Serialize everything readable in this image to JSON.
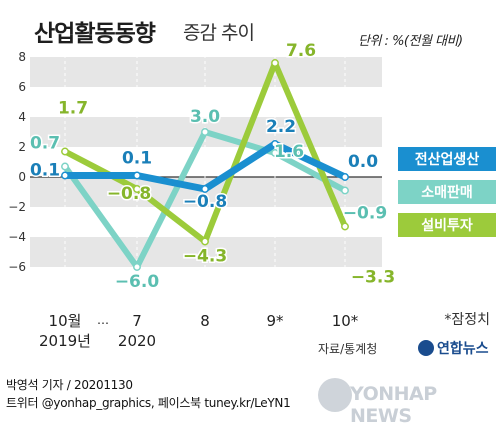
{
  "title": "산업활동동향",
  "subtitle": "증감 추이",
  "unit": "단위 : %(전월 대비)",
  "source": "자료/통계청",
  "footnote": "*잠정치",
  "byline": "박영석 기자 / 20201130",
  "social": "트위터 @yonhap_graphics, 페이스북 tuney.kr/LeYN1",
  "logo_badge": "연합뉴스",
  "watermark": "YONHAP NEWS",
  "colors": {
    "production": "#1a8fd0",
    "retail": "#7dd3c6",
    "investment": "#9ccb3b",
    "band": "#e6e6e6",
    "zero_line": "#333333"
  },
  "chart_data": {
    "type": "line",
    "x": [
      "10월",
      "7",
      "8",
      "9*",
      "10*"
    ],
    "x_sub": [
      "2019년",
      "2020",
      "",
      "",
      ""
    ],
    "x_gap_marker": "…",
    "ylim": [
      -8,
      8
    ],
    "yticks": [
      "8",
      "6",
      "4",
      "2",
      "0",
      "−2",
      "−4",
      "−6"
    ],
    "grid": "alternating horizontal bands",
    "legend": "right",
    "series": [
      {
        "name": "전산업생산",
        "color": "#1a8fd0",
        "values": [
          0.1,
          0.1,
          -0.8,
          2.2,
          0.0
        ],
        "labels": [
          "0.1",
          "0.1",
          "−0.8",
          "2.2",
          "0.0"
        ]
      },
      {
        "name": "소매판매",
        "color": "#7dd3c6",
        "values": [
          0.7,
          -6.0,
          3.0,
          1.6,
          -0.9
        ],
        "labels": [
          "0.7",
          "−6.0",
          "3.0",
          "1.6",
          "−0.9"
        ]
      },
      {
        "name": "설비투자",
        "color": "#9ccb3b",
        "values": [
          1.7,
          -0.8,
          -4.3,
          7.6,
          -3.3
        ],
        "labels": [
          "1.7",
          "−0.8",
          "−4.3",
          "7.6",
          "−3.3"
        ]
      }
    ]
  }
}
